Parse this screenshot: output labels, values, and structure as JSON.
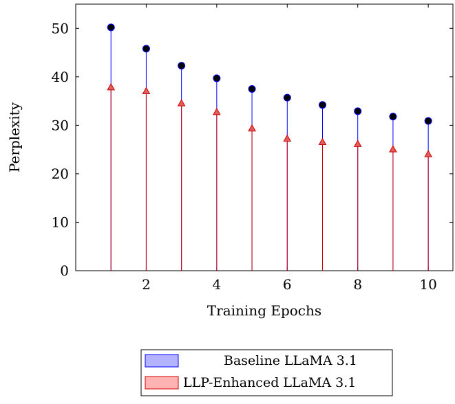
{
  "chart_data": {
    "type": "stem",
    "xlabel": "Training Epochs",
    "ylabel": "Perplexity",
    "xlim": [
      0,
      10.7
    ],
    "ylim": [
      0,
      55
    ],
    "xticks": [
      2,
      4,
      6,
      8,
      10
    ],
    "yticks": [
      0,
      10,
      20,
      30,
      40,
      50
    ],
    "grid": false,
    "legend_position": "bottom-center",
    "x": [
      1,
      2,
      3,
      4,
      5,
      6,
      7,
      8,
      9,
      10
    ],
    "series": [
      {
        "name": "Baseline LLaMA 3.1",
        "color": "#0000ff",
        "marker_color": "#000000",
        "marker": "circle",
        "values": [
          50.2,
          45.8,
          42.3,
          39.7,
          37.5,
          35.7,
          34.2,
          32.9,
          31.8,
          30.9
        ]
      },
      {
        "name": "LLP-Enhanced LLaMA 3.1",
        "color": "#cc0000",
        "marker_color": "#e06060",
        "marker": "triangle",
        "values": [
          37.8,
          37.0,
          34.5,
          32.7,
          29.3,
          27.2,
          26.5,
          26.1,
          25.0,
          24.0
        ]
      }
    ]
  }
}
